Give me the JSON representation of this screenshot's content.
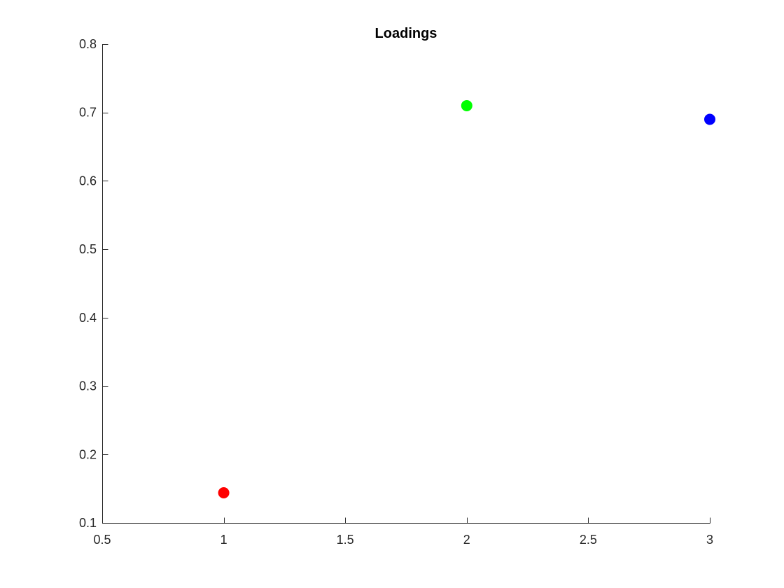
{
  "chart_data": {
    "type": "scatter",
    "title": "Loadings",
    "xlabel": "",
    "ylabel": "",
    "xlim": [
      0.5,
      3
    ],
    "ylim": [
      0.1,
      0.8
    ],
    "xticks": [
      0.5,
      1,
      1.5,
      2,
      2.5,
      3
    ],
    "xtick_labels": [
      "0.5",
      "1",
      "1.5",
      "2",
      "2.5",
      "3"
    ],
    "yticks": [
      0.1,
      0.2,
      0.3,
      0.4,
      0.5,
      0.6,
      0.7,
      0.8
    ],
    "ytick_labels": [
      "0.1",
      "0.2",
      "0.3",
      "0.4",
      "0.5",
      "0.6",
      "0.7",
      "0.8"
    ],
    "grid": false,
    "legend": "none",
    "points": [
      {
        "x": 1,
        "y": 0.144,
        "color": "#ff0000"
      },
      {
        "x": 2,
        "y": 0.71,
        "color": "#00ff00"
      },
      {
        "x": 3,
        "y": 0.69,
        "color": "#0000ff"
      }
    ]
  }
}
